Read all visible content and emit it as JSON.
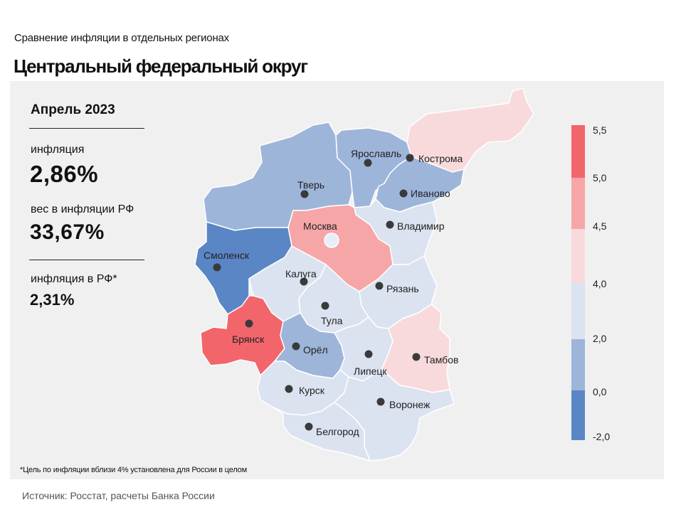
{
  "header": {
    "subtitle": "Сравнение  инфляции  в отдельных  регионах",
    "title": "Центральный федеральный округ"
  },
  "stats": {
    "period": "Апрель 2023",
    "inflation_label": "инфляция",
    "inflation_value": "2,86%",
    "weight_label": "вес в инфляции  РФ",
    "weight_value": "33,67%",
    "rf_label": "инфляция  в РФ*",
    "rf_value": "2,31%"
  },
  "footnote": "*Цель по инфляции вблизи 4% установлена для России в целом",
  "source": "Источник: Росстат, расчеты Банка России",
  "legend": {
    "labels": [
      "5,5",
      "5,0",
      "4,5",
      "4,0",
      "2,0",
      "0,0",
      "-2,0"
    ],
    "colors": [
      "#f2666b",
      "#f7a6a8",
      "#f9dadc",
      "#dbe3f1",
      "#9eb5da",
      "#5a86c5"
    ]
  },
  "colors": {
    "top": "#f2666b",
    "high": "#f7a6a8",
    "above": "#f9dadc",
    "near": "#dbe3f1",
    "low": "#9eb5da",
    "lowest": "#5a86c5",
    "panel": "#f0f0f0"
  },
  "regions": [
    {
      "id": "tver",
      "name": "Тверь",
      "bin": "low"
    },
    {
      "id": "yaroslavl",
      "name": "Ярославль",
      "bin": "low"
    },
    {
      "id": "kostroma",
      "name": "Кострома",
      "bin": "above"
    },
    {
      "id": "ivanovo",
      "name": "Иваново",
      "bin": "low"
    },
    {
      "id": "vladimir",
      "name": "Владимир",
      "bin": "near"
    },
    {
      "id": "moskva",
      "name": "Москва",
      "bin": "high"
    },
    {
      "id": "smolensk",
      "name": "Смоленск",
      "bin": "lowest"
    },
    {
      "id": "kaluga",
      "name": "Калуга",
      "bin": "near"
    },
    {
      "id": "ryazan",
      "name": "Рязань",
      "bin": "near"
    },
    {
      "id": "tula",
      "name": "Тула",
      "bin": "near"
    },
    {
      "id": "bryansk",
      "name": "Брянск",
      "bin": "top"
    },
    {
      "id": "orel",
      "name": "Орёл",
      "bin": "low"
    },
    {
      "id": "lipetsk",
      "name": "Липецк",
      "bin": "near"
    },
    {
      "id": "tambov",
      "name": "Тамбов",
      "bin": "above"
    },
    {
      "id": "kursk",
      "name": "Курск",
      "bin": "near"
    },
    {
      "id": "voronezh",
      "name": "Воронеж",
      "bin": "near"
    },
    {
      "id": "belgorod",
      "name": "Белгород",
      "bin": "near"
    }
  ]
}
